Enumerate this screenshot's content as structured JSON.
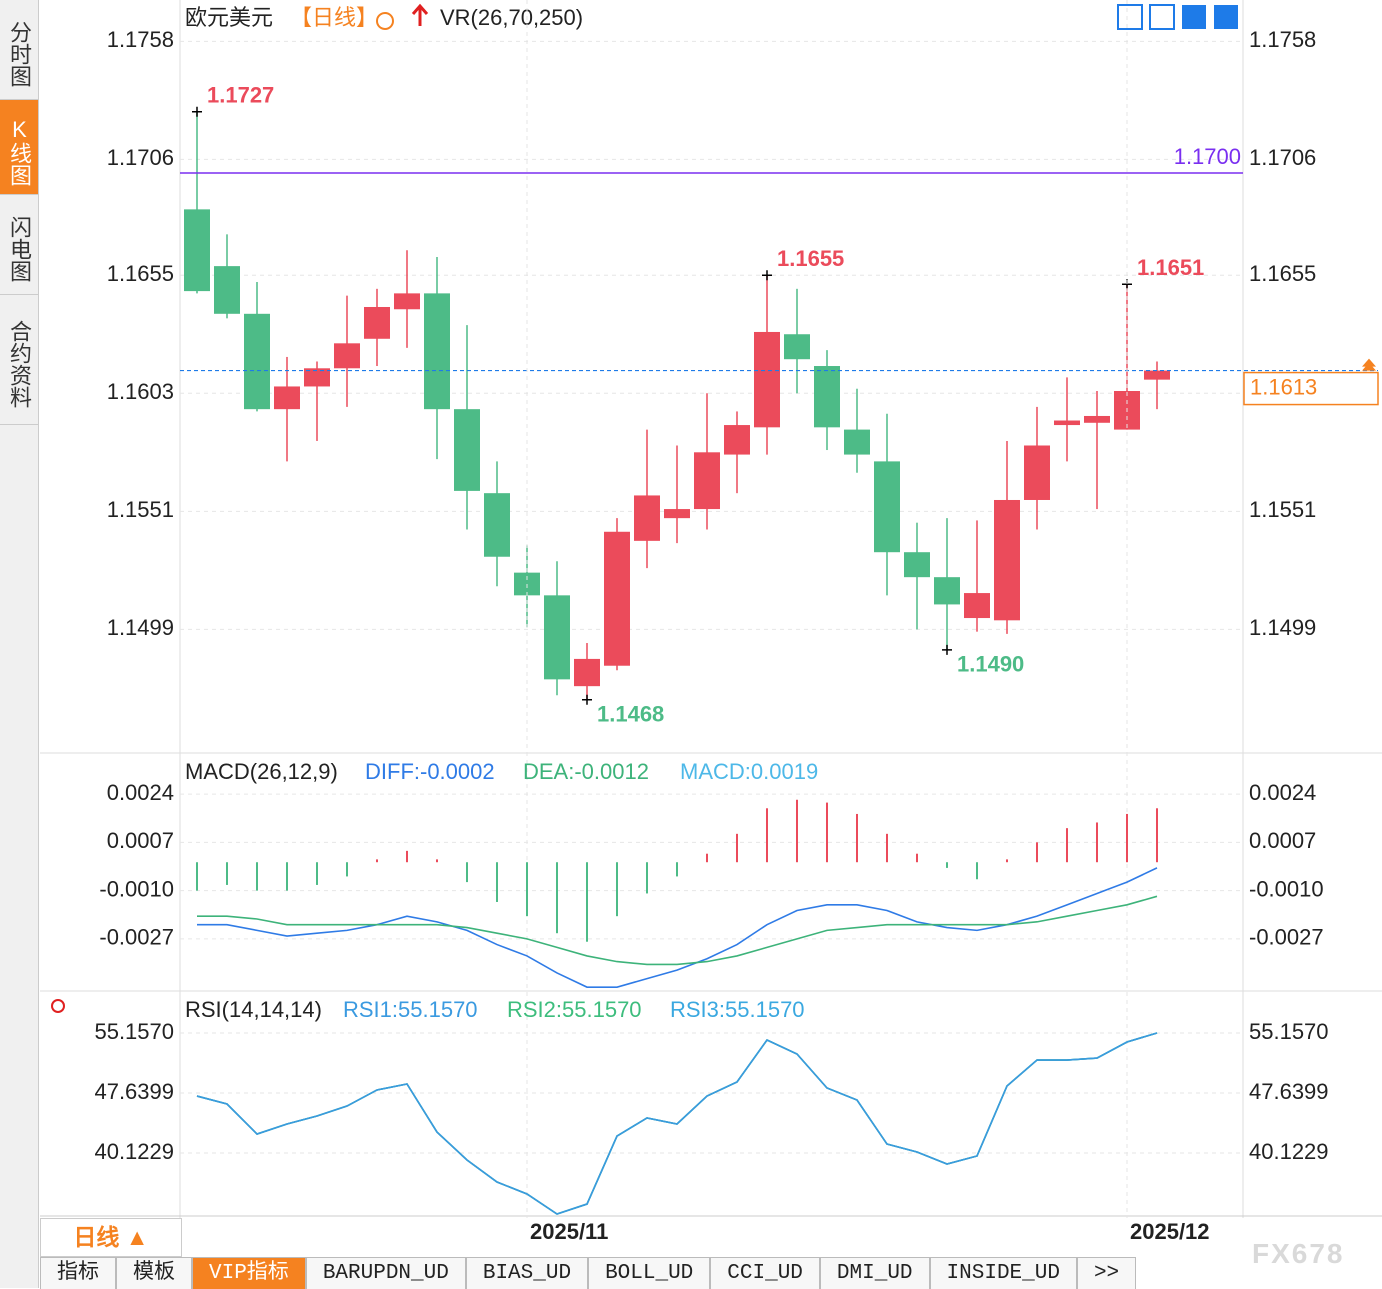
{
  "sidebar": {
    "tabs": [
      "分时图",
      "K线图",
      "闪电图",
      "合约资料"
    ]
  },
  "chart_data": [
    {
      "type": "candlestick",
      "title": "欧元美元",
      "period": "【日线】",
      "indicator": "VR(26,70,250)",
      "categories": [
        null,
        null,
        null,
        null,
        null,
        null,
        null,
        null,
        null,
        null,
        null,
        "2025/11",
        null,
        null,
        null,
        null,
        null,
        null,
        null,
        null,
        null,
        null,
        null,
        null,
        null,
        null,
        null,
        null,
        null,
        null,
        null,
        "2025/12",
        null
      ],
      "open": [
        1.1684,
        1.1659,
        1.1638,
        1.1596,
        1.1606,
        1.1614,
        1.1627,
        1.164,
        1.1647,
        1.1596,
        1.1559,
        1.1524,
        1.1514,
        1.1474,
        1.1483,
        1.1538,
        1.1548,
        1.1552,
        1.1576,
        1.1588,
        1.1629,
        1.1615,
        1.1587,
        1.1573,
        1.1533,
        1.1522,
        1.1504,
        1.1503,
        1.1556,
        1.1589,
        1.159,
        1.1587,
        1.1609
      ],
      "high": [
        1.1727,
        1.1673,
        1.1652,
        1.1619,
        1.1617,
        1.1646,
        1.1649,
        1.1666,
        1.1663,
        1.1633,
        1.1573,
        1.1536,
        1.1529,
        1.1493,
        1.1548,
        1.1587,
        1.158,
        1.1603,
        1.1595,
        1.1655,
        1.1649,
        1.1622,
        1.1605,
        1.1594,
        1.1546,
        1.1548,
        1.1547,
        1.1582,
        1.1597,
        1.161,
        1.1604,
        1.1651,
        1.1617
      ],
      "low": [
        1.1647,
        1.1636,
        1.1595,
        1.1573,
        1.1582,
        1.1597,
        1.1615,
        1.1623,
        1.1574,
        1.1543,
        1.1518,
        1.15,
        1.147,
        1.1468,
        1.1481,
        1.1526,
        1.1537,
        1.1543,
        1.1559,
        1.1576,
        1.1603,
        1.1578,
        1.1568,
        1.1514,
        1.1499,
        1.149,
        1.1498,
        1.1497,
        1.1543,
        1.1573,
        1.1552,
        1.1587,
        1.1596
      ],
      "close": [
        1.1648,
        1.1638,
        1.1596,
        1.1606,
        1.1614,
        1.1625,
        1.1641,
        1.1647,
        1.1596,
        1.156,
        1.1531,
        1.1514,
        1.1477,
        1.1486,
        1.1542,
        1.1558,
        1.1552,
        1.1577,
        1.1589,
        1.163,
        1.1618,
        1.1588,
        1.1576,
        1.1533,
        1.1522,
        1.151,
        1.1515,
        1.1556,
        1.158,
        1.1591,
        1.1593,
        1.1604,
        1.1613
      ],
      "up_color": "#eb4b5b",
      "down_color": "#4dbb87",
      "ylim": [
        1.1445,
        1.1763
      ],
      "yticks": [
        1.1499,
        1.1551,
        1.1603,
        1.1655,
        1.1706,
        1.1758
      ],
      "grid": true,
      "high_labels": [
        1.1727,
        1.1655,
        1.1651
      ],
      "low_labels": [
        1.1468,
        {
          "value": 1.149,
          "label": "1.1490"
        }
      ],
      "reference_line": {
        "value": 1.17,
        "label": "1.1700",
        "color": "#7a2ff0"
      },
      "last_price": {
        "value": 1.1613,
        "color": "#f58220",
        "line_color": "#1e7be8"
      }
    },
    {
      "type": "macd",
      "title": "MACD(26,12,9)",
      "series": [
        {
          "name": "DIFF:-0.0002",
          "color": "#2f7be6",
          "values": [
            -0.0022,
            -0.0022,
            -0.0024,
            -0.0026,
            -0.0025,
            -0.0024,
            -0.0022,
            -0.0019,
            -0.0021,
            -0.0024,
            -0.0029,
            -0.0033,
            -0.0039,
            -0.0044,
            -0.0044,
            -0.0041,
            -0.0038,
            -0.0034,
            -0.0029,
            -0.0022,
            -0.0017,
            -0.0015,
            -0.0015,
            -0.0017,
            -0.0021,
            -0.0023,
            -0.0024,
            -0.0022,
            -0.0019,
            -0.0015,
            -0.0011,
            -0.0007,
            -0.0002
          ]
        },
        {
          "name": "DEA:-0.0012",
          "color": "#3db37a",
          "values": [
            -0.0019,
            -0.0019,
            -0.002,
            -0.0022,
            -0.0022,
            -0.0022,
            -0.0022,
            -0.0022,
            -0.0022,
            -0.0023,
            -0.0025,
            -0.0027,
            -0.003,
            -0.0033,
            -0.0035,
            -0.0036,
            -0.0036,
            -0.0035,
            -0.0033,
            -0.003,
            -0.0027,
            -0.0024,
            -0.0023,
            -0.0022,
            -0.0022,
            -0.0022,
            -0.0022,
            -0.0022,
            -0.0021,
            -0.0019,
            -0.0017,
            -0.0015,
            -0.0012
          ]
        },
        {
          "name": "MACD:0.0019",
          "color": "#4db8e8",
          "style": "histogram",
          "up_color": "#eb4b5b",
          "down_color": "#4dbb87",
          "values": [
            -0.001,
            -0.0008,
            -0.001,
            -0.001,
            -0.0008,
            -0.0005,
            0.0001,
            0.0004,
            0.0001,
            -0.0007,
            -0.0014,
            -0.0019,
            -0.0025,
            -0.0028,
            -0.0019,
            -0.0011,
            -0.0005,
            0.0003,
            0.001,
            0.0019,
            0.0022,
            0.0021,
            0.0017,
            0.001,
            0.0003,
            -0.0002,
            -0.0006,
            0.0001,
            0.0007,
            0.0012,
            0.0014,
            0.0017,
            0.0019
          ]
        }
      ],
      "ylim": [
        -0.0045,
        0.0036
      ],
      "yticks": [
        {
          "value": -0.0027,
          "label": "-0.0027"
        },
        {
          "value": -0.001,
          "label": "-0.0010"
        },
        0.0007,
        0.0024
      ],
      "grid": true
    },
    {
      "type": "line",
      "title": "RSI(14,14,14)",
      "series": [
        {
          "name": "RSI1:55.1570",
          "color": "#3a9ae0",
          "values": [
            47.26,
            46.26,
            42.5,
            43.76,
            44.76,
            46.01,
            48.02,
            48.77,
            42.75,
            39.25,
            36.49,
            34.99,
            32.48,
            33.73,
            42.25,
            44.51,
            43.76,
            47.26,
            49.02,
            54.28,
            52.53,
            48.27,
            46.76,
            41.25,
            40.25,
            38.75,
            39.75,
            48.52,
            51.77,
            51.77,
            52.02,
            54.03,
            55.157
          ]
        },
        {
          "name": "RSI2:55.1570",
          "color": "#3dbd7d",
          "values": [
            47.26,
            46.26,
            42.5,
            43.76,
            44.76,
            46.01,
            48.02,
            48.77,
            42.75,
            39.25,
            36.49,
            34.99,
            32.48,
            33.73,
            42.25,
            44.51,
            43.76,
            47.26,
            49.02,
            54.28,
            52.53,
            48.27,
            46.76,
            41.25,
            40.25,
            38.75,
            39.75,
            48.52,
            51.77,
            51.77,
            52.02,
            54.03,
            55.157
          ]
        },
        {
          "name": "RSI3:55.1570",
          "color": "#3aa8e0",
          "values": [
            47.26,
            46.26,
            42.5,
            43.76,
            44.76,
            46.01,
            48.02,
            48.77,
            42.75,
            39.25,
            36.49,
            34.99,
            32.48,
            33.73,
            42.25,
            44.51,
            43.76,
            47.26,
            49.02,
            54.28,
            52.53,
            48.27,
            46.76,
            41.25,
            40.25,
            38.75,
            39.75,
            48.52,
            51.77,
            51.77,
            52.02,
            54.03,
            55.157
          ]
        }
      ],
      "ylim": [
        32.36,
        59.29
      ],
      "yticks": [
        40.1229,
        47.6399,
        {
          "value": 55.157,
          "label": "55.1570"
        }
      ],
      "grid": true
    }
  ],
  "footer": {
    "period_button": "日线 ▲",
    "tabs": [
      "指标",
      "模板",
      "VIP指标",
      "BARUPDN_UD",
      "BIAS_UD",
      "BOLL_UD",
      "CCI_UD",
      "DMI_UD",
      "INSIDE_UD",
      ">>"
    ],
    "watermark": "FX678"
  }
}
